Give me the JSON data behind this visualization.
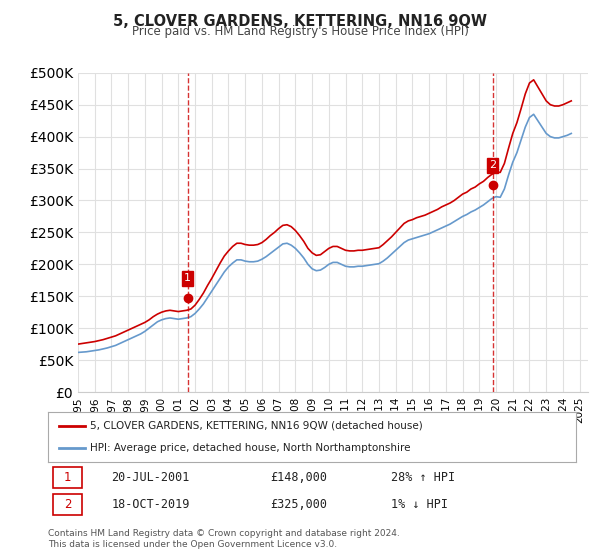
{
  "title": "5, CLOVER GARDENS, KETTERING, NN16 9QW",
  "subtitle": "Price paid vs. HM Land Registry's House Price Index (HPI)",
  "ylabel_ticks": [
    "£0",
    "£50K",
    "£100K",
    "£150K",
    "£200K",
    "£250K",
    "£300K",
    "£350K",
    "£400K",
    "£450K",
    "£500K"
  ],
  "ytick_values": [
    0,
    50000,
    100000,
    150000,
    200000,
    250000,
    300000,
    350000,
    400000,
    450000,
    500000
  ],
  "ylim": [
    0,
    500000
  ],
  "xlim_start": 1995.0,
  "xlim_end": 2025.5,
  "background_color": "#ffffff",
  "grid_color": "#e0e0e0",
  "red_line_color": "#cc0000",
  "blue_line_color": "#6699cc",
  "vline_color": "#cc0000",
  "point1_x": 2001.55,
  "point1_y": 148000,
  "point1_label": "1",
  "point2_x": 2019.79,
  "point2_y": 325000,
  "point2_label": "2",
  "legend_line1": "5, CLOVER GARDENS, KETTERING, NN16 9QW (detached house)",
  "legend_line2": "HPI: Average price, detached house, North Northamptonshire",
  "annot1_num": "1",
  "annot1_date": "20-JUL-2001",
  "annot1_price": "£148,000",
  "annot1_hpi": "28% ↑ HPI",
  "annot2_num": "2",
  "annot2_date": "18-OCT-2019",
  "annot2_price": "£325,000",
  "annot2_hpi": "1% ↓ HPI",
  "footer": "Contains HM Land Registry data © Crown copyright and database right 2024.\nThis data is licensed under the Open Government Licence v3.0.",
  "hpi_data_x": [
    1995.0,
    1995.25,
    1995.5,
    1995.75,
    1996.0,
    1996.25,
    1996.5,
    1996.75,
    1997.0,
    1997.25,
    1997.5,
    1997.75,
    1998.0,
    1998.25,
    1998.5,
    1998.75,
    1999.0,
    1999.25,
    1999.5,
    1999.75,
    2000.0,
    2000.25,
    2000.5,
    2000.75,
    2001.0,
    2001.25,
    2001.5,
    2001.75,
    2002.0,
    2002.25,
    2002.5,
    2002.75,
    2003.0,
    2003.25,
    2003.5,
    2003.75,
    2004.0,
    2004.25,
    2004.5,
    2004.75,
    2005.0,
    2005.25,
    2005.5,
    2005.75,
    2006.0,
    2006.25,
    2006.5,
    2006.75,
    2007.0,
    2007.25,
    2007.5,
    2007.75,
    2008.0,
    2008.25,
    2008.5,
    2008.75,
    2009.0,
    2009.25,
    2009.5,
    2009.75,
    2010.0,
    2010.25,
    2010.5,
    2010.75,
    2011.0,
    2011.25,
    2011.5,
    2011.75,
    2012.0,
    2012.25,
    2012.5,
    2012.75,
    2013.0,
    2013.25,
    2013.5,
    2013.75,
    2014.0,
    2014.25,
    2014.5,
    2014.75,
    2015.0,
    2015.25,
    2015.5,
    2015.75,
    2016.0,
    2016.25,
    2016.5,
    2016.75,
    2017.0,
    2017.25,
    2017.5,
    2017.75,
    2018.0,
    2018.25,
    2018.5,
    2018.75,
    2019.0,
    2019.25,
    2019.5,
    2019.75,
    2020.0,
    2020.25,
    2020.5,
    2020.75,
    2021.0,
    2021.25,
    2021.5,
    2021.75,
    2022.0,
    2022.25,
    2022.5,
    2022.75,
    2023.0,
    2023.25,
    2023.5,
    2023.75,
    2024.0,
    2024.25,
    2024.5
  ],
  "hpi_data_y": [
    62000,
    62500,
    63000,
    64000,
    65000,
    66000,
    67500,
    69000,
    71000,
    73000,
    76000,
    79000,
    82000,
    85000,
    88000,
    91000,
    95000,
    100000,
    105000,
    110000,
    113000,
    115000,
    116000,
    115000,
    114000,
    115000,
    116000,
    118000,
    123000,
    130000,
    138000,
    148000,
    158000,
    168000,
    178000,
    188000,
    196000,
    202000,
    207000,
    207000,
    205000,
    204000,
    204000,
    205000,
    208000,
    212000,
    217000,
    222000,
    227000,
    232000,
    233000,
    230000,
    225000,
    218000,
    210000,
    200000,
    193000,
    190000,
    191000,
    195000,
    200000,
    203000,
    203000,
    200000,
    197000,
    196000,
    196000,
    197000,
    197000,
    198000,
    199000,
    200000,
    201000,
    205000,
    210000,
    216000,
    222000,
    228000,
    234000,
    238000,
    240000,
    242000,
    244000,
    246000,
    248000,
    251000,
    254000,
    257000,
    260000,
    263000,
    267000,
    271000,
    275000,
    278000,
    282000,
    285000,
    289000,
    293000,
    298000,
    303000,
    306000,
    305000,
    318000,
    340000,
    360000,
    375000,
    395000,
    415000,
    430000,
    435000,
    425000,
    415000,
    405000,
    400000,
    398000,
    398000,
    400000,
    402000,
    405000
  ],
  "red_data_x": [
    1995.0,
    1995.25,
    1995.5,
    1995.75,
    1996.0,
    1996.25,
    1996.5,
    1996.75,
    1997.0,
    1997.25,
    1997.5,
    1997.75,
    1998.0,
    1998.25,
    1998.5,
    1998.75,
    1999.0,
    1999.25,
    1999.5,
    1999.75,
    2000.0,
    2000.25,
    2000.5,
    2000.75,
    2001.0,
    2001.25,
    2001.5,
    2001.75,
    2002.0,
    2002.25,
    2002.5,
    2002.75,
    2003.0,
    2003.25,
    2003.5,
    2003.75,
    2004.0,
    2004.25,
    2004.5,
    2004.75,
    2005.0,
    2005.25,
    2005.5,
    2005.75,
    2006.0,
    2006.25,
    2006.5,
    2006.75,
    2007.0,
    2007.25,
    2007.5,
    2007.75,
    2008.0,
    2008.25,
    2008.5,
    2008.75,
    2009.0,
    2009.25,
    2009.5,
    2009.75,
    2010.0,
    2010.25,
    2010.5,
    2010.75,
    2011.0,
    2011.25,
    2011.5,
    2011.75,
    2012.0,
    2012.25,
    2012.5,
    2012.75,
    2013.0,
    2013.25,
    2013.5,
    2013.75,
    2014.0,
    2014.25,
    2014.5,
    2014.75,
    2015.0,
    2015.25,
    2015.5,
    2015.75,
    2016.0,
    2016.25,
    2016.5,
    2016.75,
    2017.0,
    2017.25,
    2017.5,
    2017.75,
    2018.0,
    2018.25,
    2018.5,
    2018.75,
    2019.0,
    2019.25,
    2019.5,
    2019.75,
    2020.0,
    2020.25,
    2020.5,
    2020.75,
    2021.0,
    2021.25,
    2021.5,
    2021.75,
    2022.0,
    2022.25,
    2022.5,
    2022.75,
    2023.0,
    2023.25,
    2023.5,
    2023.75,
    2024.0,
    2024.25,
    2024.5
  ],
  "red_data_y": [
    75000,
    76000,
    77000,
    78000,
    79000,
    80500,
    82000,
    84000,
    86000,
    88000,
    91000,
    94000,
    97000,
    100000,
    103000,
    106000,
    109000,
    113000,
    118000,
    122000,
    125000,
    127000,
    128000,
    127000,
    126000,
    127000,
    128000,
    130000,
    136000,
    145000,
    155000,
    167000,
    178000,
    190000,
    202000,
    213000,
    221000,
    228000,
    233000,
    233000,
    231000,
    230000,
    230000,
    231000,
    234000,
    239000,
    245000,
    250000,
    256000,
    261000,
    262000,
    259000,
    253000,
    245000,
    236000,
    225000,
    218000,
    214000,
    215000,
    220000,
    225000,
    228000,
    228000,
    225000,
    222000,
    221000,
    221000,
    222000,
    222000,
    223000,
    224000,
    225000,
    226000,
    231000,
    237000,
    243000,
    250000,
    257000,
    264000,
    268000,
    270000,
    273000,
    275000,
    277000,
    280000,
    283000,
    286000,
    290000,
    293000,
    296000,
    300000,
    305000,
    310000,
    313000,
    318000,
    321000,
    326000,
    330000,
    336000,
    341000,
    344000,
    344000,
    358000,
    382000,
    405000,
    422000,
    444000,
    467000,
    484000,
    489000,
    478000,
    467000,
    456000,
    450000,
    448000,
    448000,
    450000,
    453000,
    456000
  ]
}
